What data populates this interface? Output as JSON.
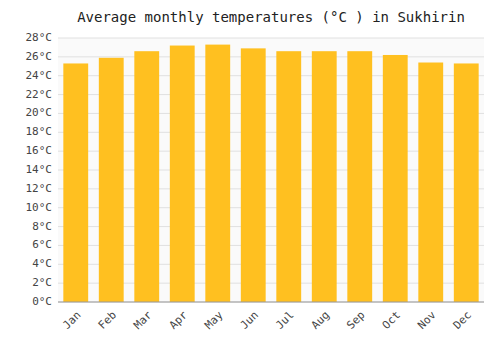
{
  "chart_data": {
    "type": "bar",
    "title": "Average monthly temperatures (°C ) in Sukhirin",
    "categories": [
      "Jan",
      "Feb",
      "Mar",
      "Apr",
      "May",
      "Jun",
      "Jul",
      "Aug",
      "Sep",
      "Oct",
      "Nov",
      "Dec"
    ],
    "values": [
      25.3,
      25.9,
      26.6,
      27.2,
      27.3,
      26.9,
      26.6,
      26.6,
      26.6,
      26.2,
      25.4,
      25.3
    ],
    "color": "#FFC020",
    "ylim": [
      0,
      28
    ],
    "yticks": [
      {
        "value": 0,
        "label": "0°C"
      },
      {
        "value": 2,
        "label": "2°C"
      },
      {
        "value": 4,
        "label": "4°C"
      },
      {
        "value": 6,
        "label": "6°C"
      },
      {
        "value": 8,
        "label": "8°C"
      },
      {
        "value": 10,
        "label": "10°C"
      },
      {
        "value": 12,
        "label": "12°C"
      },
      {
        "value": 14,
        "label": "14°C"
      },
      {
        "value": 16,
        "label": "16°C"
      },
      {
        "value": 18,
        "label": "18°C"
      },
      {
        "value": 20,
        "label": "20°C"
      },
      {
        "value": 22,
        "label": "22°C"
      },
      {
        "value": 24,
        "label": "24°C"
      },
      {
        "value": 26,
        "label": "26°C"
      },
      {
        "value": 28,
        "label": "28°C"
      }
    ],
    "grid": true
  }
}
